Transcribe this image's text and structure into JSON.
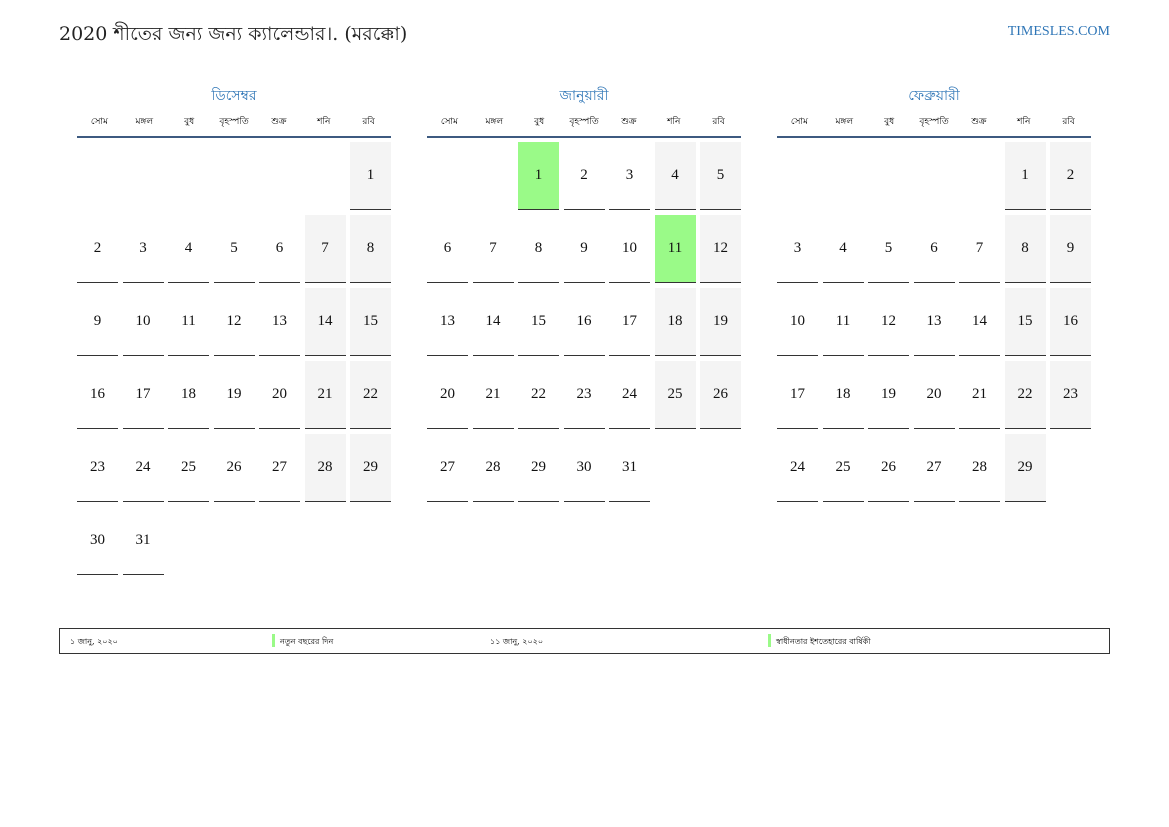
{
  "title": "2020 শীতের জন্য জন্য ক্যালেন্ডার।. (মরক্কো)",
  "site": "TIMESLES.COM",
  "weekdays": [
    "সোম",
    "মঙ্গল",
    "বুধ",
    "বৃহস্পতি",
    "শুক্র",
    "শনি",
    "রবি"
  ],
  "colors": {
    "accent": "#2e75b6",
    "weekend": "#f4f4f4",
    "holiday": "#9afa88"
  },
  "months": [
    {
      "name": "ডিসেম্বর",
      "start_weekday_index": 6,
      "days": 31,
      "holidays": []
    },
    {
      "name": "জানুয়ারী",
      "start_weekday_index": 2,
      "days": 31,
      "holidays": [
        1,
        11
      ]
    },
    {
      "name": "ফেব্রুয়ারী",
      "start_weekday_index": 5,
      "days": 29,
      "holidays": []
    }
  ],
  "legend": [
    {
      "date": "১ জানু, ২০২০",
      "name": "নতুন বছরের দিন"
    },
    {
      "date": "১১ জানু, ২০২০",
      "name": "স্বাধীনতার ইশতেহারের বার্ষিকী"
    }
  ]
}
